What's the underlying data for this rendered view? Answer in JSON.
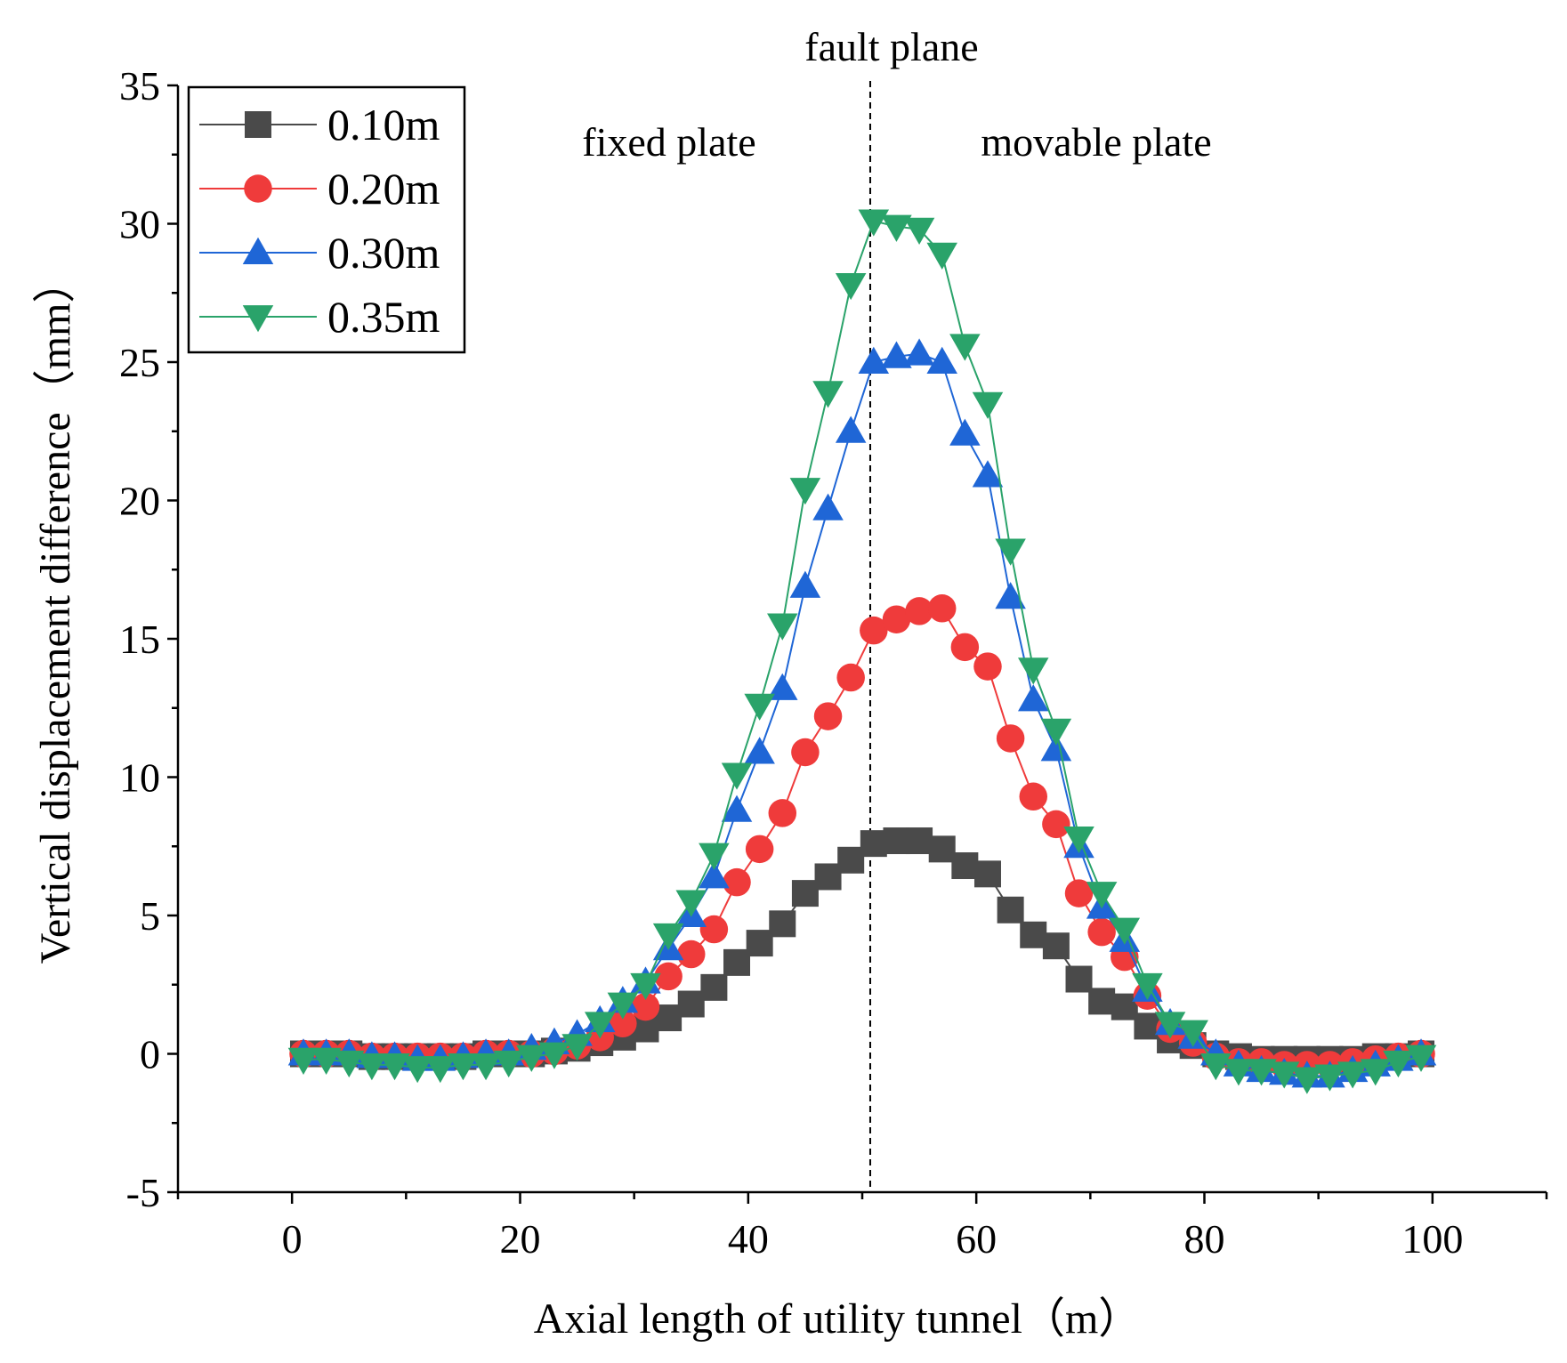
{
  "chart_data": {
    "type": "line",
    "xlabel": "Axial length of utility tunnel（m）",
    "ylabel": "Vertical displacement difference（mm）",
    "xlim": [
      -10,
      110
    ],
    "ylim": [
      -5,
      35
    ],
    "xticks": [
      0,
      20,
      40,
      60,
      80,
      100
    ],
    "yticks": [
      -5,
      0,
      5,
      10,
      15,
      20,
      25,
      30,
      35
    ],
    "legend_position": "top-left",
    "annotations": {
      "fault_label": "fault plane",
      "fault_x": 50.7,
      "left_region": "fixed plate",
      "right_region": "movable plate"
    },
    "x": [
      1,
      3,
      5,
      7,
      9,
      11,
      13,
      15,
      17,
      19,
      21,
      23,
      25,
      27,
      29,
      31,
      33,
      35,
      37,
      39,
      41,
      43,
      45,
      47,
      49,
      51,
      53,
      55,
      57,
      59,
      61,
      63,
      65,
      67,
      69,
      71,
      73,
      75,
      77,
      79,
      81,
      83,
      85,
      87,
      89,
      91,
      93,
      95,
      97,
      99
    ],
    "series": [
      {
        "name": "0.10m",
        "marker": "square",
        "color": "#4a4a4a",
        "values": [
          0,
          0,
          0,
          -0.1,
          -0.1,
          -0.1,
          -0.1,
          -0.1,
          0,
          0,
          0,
          0.1,
          0.2,
          0.4,
          0.6,
          0.9,
          1.3,
          1.8,
          2.4,
          3.3,
          4.0,
          4.7,
          5.8,
          6.4,
          7.0,
          7.6,
          7.7,
          7.7,
          7.4,
          6.8,
          6.5,
          5.2,
          4.3,
          3.9,
          2.7,
          1.9,
          1.7,
          1.0,
          0.5,
          0.3,
          0,
          -0.1,
          -0.2,
          -0.2,
          -0.2,
          -0.2,
          -0.2,
          -0.1,
          -0.1,
          0
        ]
      },
      {
        "name": "0.20m",
        "marker": "circle",
        "color": "#ef3b3b",
        "values": [
          0,
          0,
          0,
          -0.1,
          -0.1,
          -0.1,
          -0.1,
          -0.1,
          0,
          0,
          0,
          0.1,
          0.3,
          0.6,
          1.1,
          1.7,
          2.8,
          3.6,
          4.5,
          6.2,
          7.4,
          8.7,
          10.9,
          12.2,
          13.6,
          15.3,
          15.7,
          16.0,
          16.1,
          14.7,
          14.0,
          11.4,
          9.3,
          8.3,
          5.8,
          4.4,
          3.5,
          2.1,
          0.9,
          0.4,
          -0.1,
          -0.3,
          -0.3,
          -0.4,
          -0.4,
          -0.4,
          -0.3,
          -0.2,
          -0.1,
          0
        ]
      },
      {
        "name": "0.30m",
        "marker": "triangle-up",
        "color": "#1f66d6",
        "values": [
          0,
          0,
          0,
          -0.1,
          -0.1,
          -0.2,
          -0.2,
          -0.1,
          0,
          0,
          0.2,
          0.4,
          0.7,
          1.2,
          1.9,
          2.6,
          3.8,
          5.0,
          6.4,
          8.8,
          10.9,
          13.2,
          16.9,
          19.7,
          22.5,
          25.0,
          25.2,
          25.3,
          25.0,
          22.4,
          20.9,
          16.5,
          12.8,
          11.0,
          7.5,
          5.3,
          4.1,
          2.3,
          1.1,
          0.6,
          0,
          -0.4,
          -0.6,
          -0.7,
          -0.8,
          -0.8,
          -0.6,
          -0.4,
          -0.2,
          0
        ]
      },
      {
        "name": "0.35m",
        "marker": "triangle-down",
        "color": "#2aa36a",
        "values": [
          -0.2,
          -0.2,
          -0.3,
          -0.4,
          -0.4,
          -0.5,
          -0.5,
          -0.4,
          -0.4,
          -0.3,
          -0.1,
          0,
          0.3,
          1.1,
          1.8,
          2.5,
          4.3,
          5.5,
          7.2,
          10.1,
          12.6,
          15.5,
          20.4,
          23.9,
          27.8,
          30.1,
          29.9,
          29.8,
          28.9,
          25.6,
          23.5,
          18.2,
          13.9,
          11.7,
          7.8,
          5.8,
          4.5,
          2.5,
          1.1,
          0.8,
          -0.4,
          -0.6,
          -0.6,
          -0.7,
          -0.9,
          -0.8,
          -0.7,
          -0.6,
          -0.3,
          -0.1
        ]
      }
    ]
  }
}
